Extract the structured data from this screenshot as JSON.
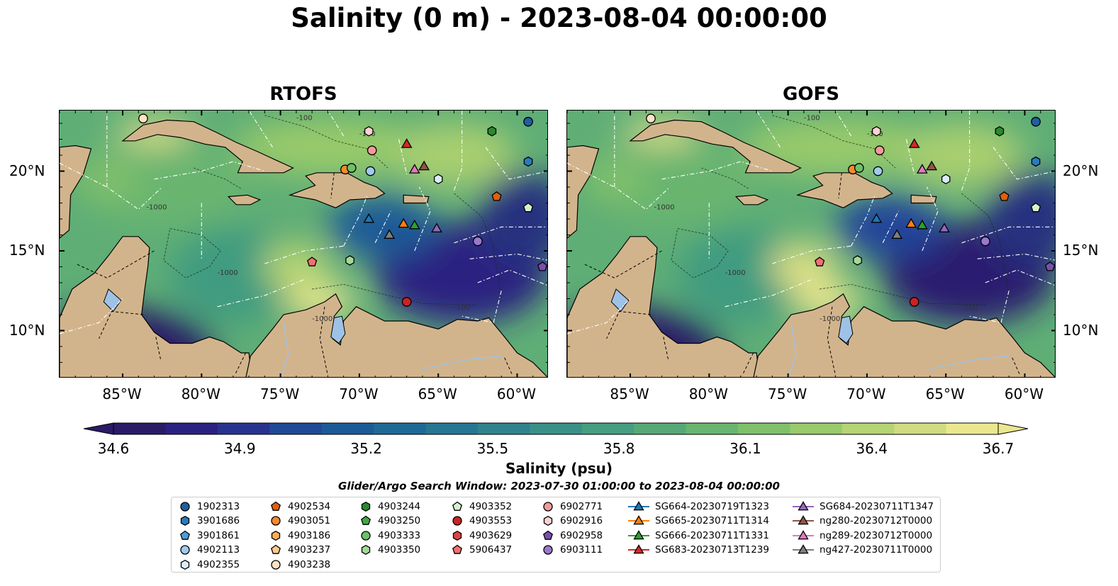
{
  "title": "Salinity (0 m) - 2023-08-04 00:00:00",
  "panels": [
    {
      "id": "rtofs",
      "title": "RTOFS"
    },
    {
      "id": "gofs",
      "title": "GOFS"
    }
  ],
  "map": {
    "extent": {
      "lon_min": -89,
      "lon_max": -58,
      "lat_min": 7,
      "lat_max": 23.8
    },
    "lon_ticks": [
      -85,
      -80,
      -75,
      -70,
      -65,
      -60
    ],
    "lon_tick_labels": [
      "85°W",
      "80°W",
      "75°W",
      "70°W",
      "65°W",
      "60°W"
    ],
    "lat_ticks": [
      10,
      15,
      20
    ],
    "lat_tick_labels": [
      "10°N",
      "15°N",
      "20°N"
    ],
    "land_color": "#d2b48c",
    "deep_salinity_color": "#2b1a6b",
    "contour_labels": [
      "-100",
      "-1000"
    ]
  },
  "colorbar": {
    "min": 34.6,
    "max": 36.7,
    "ticks": [
      "34.6",
      "34.9",
      "35.2",
      "35.5",
      "35.8",
      "36.1",
      "36.4",
      "36.7"
    ],
    "colors": [
      "#2a1b66",
      "#2b2181",
      "#28338f",
      "#204896",
      "#1b5a97",
      "#1f6996",
      "#277692",
      "#30838d",
      "#3a9087",
      "#469d7f",
      "#56a977",
      "#69b570",
      "#80c06b",
      "#99ca6b",
      "#b5d473",
      "#d0dc81",
      "#ebe78f"
    ],
    "label": "Salinity (psu)",
    "extend": "both"
  },
  "search_window": "Glider/Argo Search Window: 2023-07-30 01:00:00 to 2023-08-04 00:00:00",
  "legend": {
    "columns": [
      [
        {
          "label": "1902313",
          "marker": "circle",
          "color": "#1f5fa0"
        },
        {
          "label": "3901686",
          "marker": "hexagon",
          "color": "#2a7bbd"
        },
        {
          "label": "3901861",
          "marker": "pentagon",
          "color": "#4f9bd6"
        },
        {
          "label": "4902113",
          "marker": "circle",
          "color": "#9fcbee"
        },
        {
          "label": "4902355",
          "marker": "hexagon",
          "color": "#dcecfa"
        }
      ],
      [
        {
          "label": "4902534",
          "marker": "pentagon",
          "color": "#e0600a"
        },
        {
          "label": "4903051",
          "marker": "circle",
          "color": "#f58a2e"
        },
        {
          "label": "4903186",
          "marker": "hexagon",
          "color": "#f9ac5c"
        },
        {
          "label": "4903237",
          "marker": "pentagon",
          "color": "#fcc98f"
        },
        {
          "label": "4903238",
          "marker": "circle",
          "color": "#fde3c4"
        }
      ],
      [
        {
          "label": "4903244",
          "marker": "hexagon",
          "color": "#2a8a2a"
        },
        {
          "label": "4903250",
          "marker": "pentagon",
          "color": "#44a744"
        },
        {
          "label": "4903333",
          "marker": "circle",
          "color": "#6ec06a"
        },
        {
          "label": "4903350",
          "marker": "hexagon",
          "color": "#a2da97"
        },
        {
          "label": "",
          "marker": "none",
          "color": "#ffffff"
        }
      ],
      [
        {
          "label": "4903352",
          "marker": "pentagon",
          "color": "#d6f2cd"
        },
        {
          "label": "4903553",
          "marker": "circle",
          "color": "#cc2222"
        },
        {
          "label": "4903629",
          "marker": "hexagon",
          "color": "#e04444"
        },
        {
          "label": "5906437",
          "marker": "pentagon",
          "color": "#f07070"
        },
        {
          "label": "",
          "marker": "none",
          "color": "#ffffff"
        }
      ],
      [
        {
          "label": "6902771",
          "marker": "circle",
          "color": "#f29a9a"
        },
        {
          "label": "6902916",
          "marker": "hexagon",
          "color": "#fbd2d2"
        },
        {
          "label": "6902958",
          "marker": "pentagon",
          "color": "#7a4fb0"
        },
        {
          "label": "6903111",
          "marker": "circle",
          "color": "#9b78cc"
        },
        {
          "label": "",
          "marker": "none",
          "color": "#ffffff"
        }
      ],
      [
        {
          "label": "SG664-20230719T1323",
          "marker": "triangle-line",
          "color": "#1f77b4"
        },
        {
          "label": "SG665-20230711T1314",
          "marker": "triangle-line",
          "color": "#ff7f0e"
        },
        {
          "label": "SG666-20230711T1331",
          "marker": "triangle-line",
          "color": "#2ca02c"
        },
        {
          "label": "SG683-20230713T1239",
          "marker": "triangle-line",
          "color": "#d62728"
        },
        {
          "label": "",
          "marker": "none",
          "color": "#ffffff"
        }
      ],
      [
        {
          "label": "SG684-20230711T1347",
          "marker": "triangle-line",
          "color": "#9467bd"
        },
        {
          "label": "ng280-20230712T0000",
          "marker": "triangle-line",
          "color": "#8c564b"
        },
        {
          "label": "ng289-20230712T0000",
          "marker": "triangle-line",
          "color": "#e377c2"
        },
        {
          "label": "ng427-20230711T0000",
          "marker": "triangle-line",
          "color": "#7f7f7f"
        },
        {
          "label": "",
          "marker": "none",
          "color": "#ffffff"
        }
      ]
    ]
  },
  "platforms": [
    {
      "id": "1902313",
      "lon": -59.3,
      "lat": 23.1,
      "marker": "circle",
      "color": "#1f5fa0"
    },
    {
      "id": "3901686",
      "lon": -59.3,
      "lat": 20.6,
      "marker": "hexagon",
      "color": "#2a7bbd"
    },
    {
      "id": "4902113",
      "lon": -69.3,
      "lat": 20.0,
      "marker": "circle",
      "color": "#9fcbee"
    },
    {
      "id": "4902355",
      "lon": -65.0,
      "lat": 19.5,
      "marker": "hexagon",
      "color": "#dcecfa"
    },
    {
      "id": "4902534",
      "lon": -61.3,
      "lat": 18.4,
      "marker": "pentagon",
      "color": "#e0600a"
    },
    {
      "id": "4903051",
      "lon": -70.9,
      "lat": 20.1,
      "marker": "circle",
      "color": "#f58a2e"
    },
    {
      "id": "4903238",
      "lon": -83.7,
      "lat": 23.3,
      "marker": "circle",
      "color": "#fde3c4"
    },
    {
      "id": "4903244",
      "lon": -61.6,
      "lat": 22.5,
      "marker": "hexagon",
      "color": "#2a8a2a"
    },
    {
      "id": "4903333",
      "lon": -70.5,
      "lat": 20.2,
      "marker": "circle",
      "color": "#6ec06a"
    },
    {
      "id": "4903350",
      "lon": -70.6,
      "lat": 14.4,
      "marker": "hexagon",
      "color": "#a2da97"
    },
    {
      "id": "4903352",
      "lon": -59.3,
      "lat": 17.7,
      "marker": "pentagon",
      "color": "#d6f2cd"
    },
    {
      "id": "4903553",
      "lon": -67.0,
      "lat": 11.8,
      "marker": "circle",
      "color": "#cc2222"
    },
    {
      "id": "5906437",
      "lon": -73.0,
      "lat": 14.3,
      "marker": "pentagon",
      "color": "#f07070"
    },
    {
      "id": "6902771",
      "lon": -69.2,
      "lat": 21.3,
      "marker": "circle",
      "color": "#f29a9a"
    },
    {
      "id": "6902916",
      "lon": -69.4,
      "lat": 22.5,
      "marker": "hexagon",
      "color": "#fbd2d2"
    },
    {
      "id": "6902958",
      "lon": -58.4,
      "lat": 14.0,
      "marker": "pentagon",
      "color": "#7a4fb0"
    },
    {
      "id": "6903111",
      "lon": -62.5,
      "lat": 15.6,
      "marker": "circle",
      "color": "#9b78cc"
    },
    {
      "id": "SG664-20230719T1323",
      "lon": -69.4,
      "lat": 17.0,
      "marker": "triangle",
      "color": "#1f77b4"
    },
    {
      "id": "SG665-20230711T1314",
      "lon": -67.2,
      "lat": 16.7,
      "marker": "triangle",
      "color": "#ff7f0e"
    },
    {
      "id": "SG666-20230711T1331",
      "lon": -66.5,
      "lat": 16.6,
      "marker": "triangle",
      "color": "#2ca02c"
    },
    {
      "id": "SG683-20230713T1239",
      "lon": -67.0,
      "lat": 21.7,
      "marker": "triangle",
      "color": "#d62728"
    },
    {
      "id": "SG684-20230711T1347",
      "lon": -65.1,
      "lat": 16.4,
      "marker": "triangle",
      "color": "#9467bd"
    },
    {
      "id": "ng280-20230712T0000",
      "lon": -65.9,
      "lat": 20.3,
      "marker": "triangle",
      "color": "#8c564b"
    },
    {
      "id": "ng289-20230712T0000",
      "lon": -66.5,
      "lat": 20.1,
      "marker": "triangle",
      "color": "#e377c2"
    },
    {
      "id": "ng427-20230711T0000",
      "lon": -68.1,
      "lat": 16.0,
      "marker": "triangle",
      "color": "#7f7f7f"
    }
  ]
}
